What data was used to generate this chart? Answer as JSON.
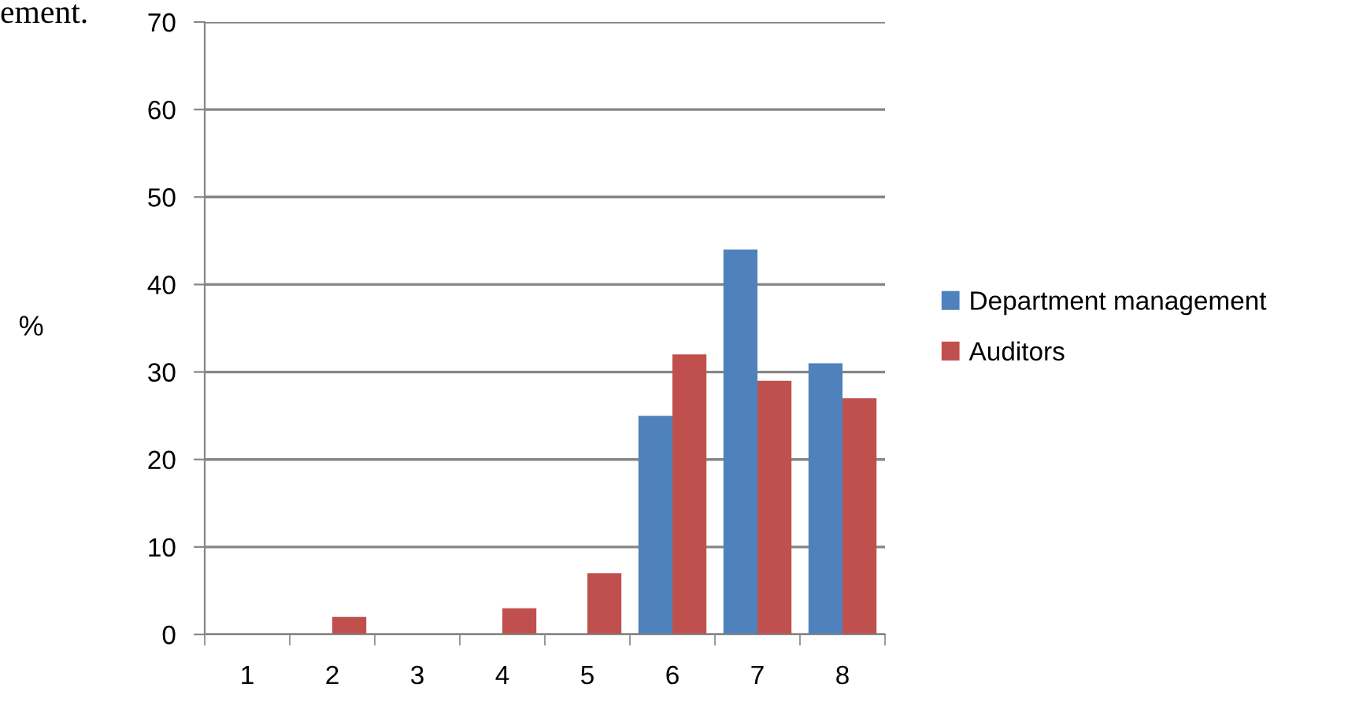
{
  "chart_data": {
    "type": "bar",
    "ylabel": "%",
    "annotations": [
      "ement."
    ],
    "categories": [
      "1",
      "2",
      "3",
      "4",
      "5",
      "6",
      "7",
      "8"
    ],
    "series": [
      {
        "name": "Department management",
        "color": "#4f81bd",
        "values": [
          0,
          0,
          0,
          0,
          0,
          25,
          44,
          31
        ]
      },
      {
        "name": "Auditors",
        "color": "#c0504d",
        "values": [
          0,
          2,
          0,
          3,
          7,
          32,
          29,
          27
        ]
      }
    ],
    "ylim": [
      0,
      70
    ],
    "yticks": [
      0,
      10,
      20,
      30,
      40,
      50,
      60,
      70
    ],
    "grid": "y",
    "legend": "right"
  }
}
